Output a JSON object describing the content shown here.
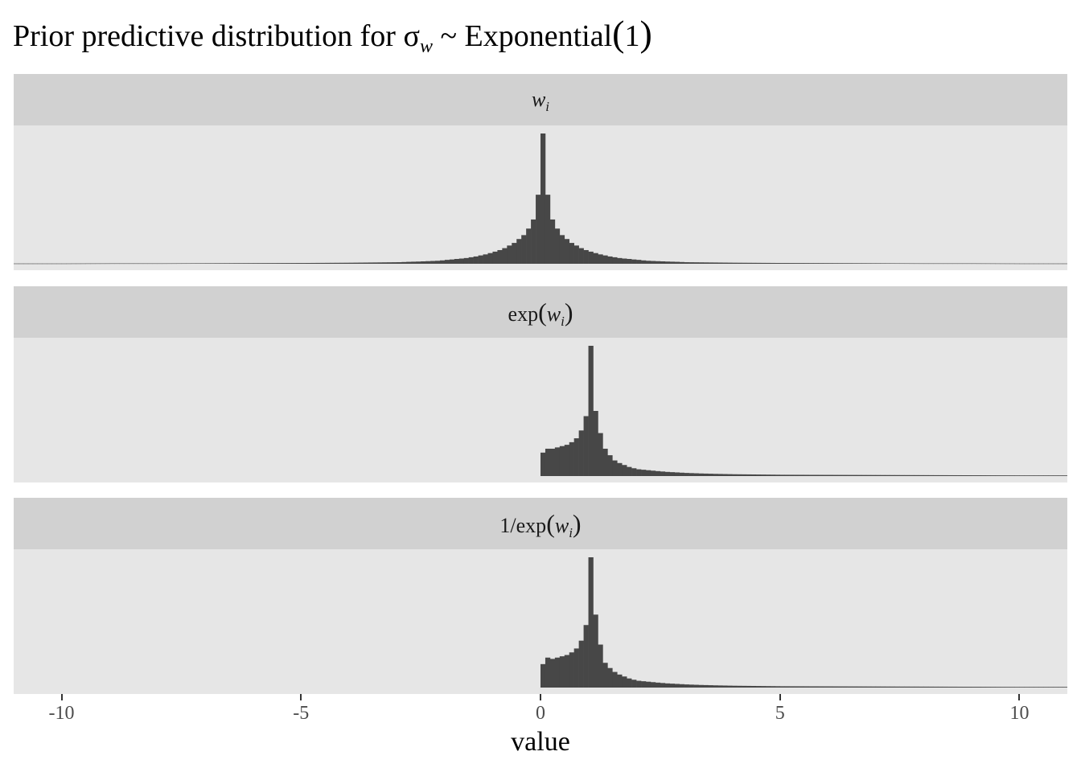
{
  "title": {
    "prefix": "Prior predictive distribution for σ",
    "sub": "w",
    "mid": " ~ Exponential",
    "arg": "1"
  },
  "panels": [
    {
      "label_html": "<i>w</i><sub>i</sub>"
    },
    {
      "label_html": "exp<span class=\"paren\">(</span><i>w</i><sub>i</sub><span class=\"paren\">)</span>"
    },
    {
      "label_html": "1/exp<span class=\"paren\">(</span><i>w</i><sub>i</sub><span class=\"paren\">)</span>"
    }
  ],
  "chart_data": {
    "type": "bar",
    "subtype": "histogram-faceted",
    "xlabel": "value",
    "ylabel": "",
    "xlim": [
      -11,
      11
    ],
    "x_ticks": [
      -10,
      -5,
      0,
      5,
      10
    ],
    "x_tick_labels": [
      "-10",
      "-5",
      "0",
      "5",
      "10"
    ],
    "y_axis_shown": false,
    "grid": false,
    "bin_width": 0.1,
    "bar_color": "#474747",
    "facets": [
      {
        "label": "w_i",
        "bins": [
          [
            -11.0,
            0.2
          ],
          [
            -10.0,
            0.2
          ],
          [
            -9.0,
            0.3
          ],
          [
            -8.0,
            0.3
          ],
          [
            -7.0,
            0.4
          ],
          [
            -6.0,
            0.5
          ],
          [
            -5.0,
            0.6
          ],
          [
            -4.0,
            0.8
          ],
          [
            -3.5,
            1.0
          ],
          [
            -3.0,
            1.2
          ],
          [
            -2.8,
            1.5
          ],
          [
            -2.6,
            1.7
          ],
          [
            -2.4,
            2.0
          ],
          [
            -2.2,
            2.3
          ],
          [
            -2.1,
            2.6
          ],
          [
            -2.0,
            3.0
          ],
          [
            -1.9,
            3.3
          ],
          [
            -1.8,
            3.7
          ],
          [
            -1.7,
            4.0
          ],
          [
            -1.6,
            4.4
          ],
          [
            -1.5,
            5.0
          ],
          [
            -1.4,
            5.6
          ],
          [
            -1.3,
            6.4
          ],
          [
            -1.2,
            7.2
          ],
          [
            -1.1,
            8.2
          ],
          [
            -1.0,
            9.3
          ],
          [
            -0.9,
            10.5
          ],
          [
            -0.8,
            12.0
          ],
          [
            -0.7,
            14.0
          ],
          [
            -0.6,
            16.0
          ],
          [
            -0.5,
            19.0
          ],
          [
            -0.4,
            22.0
          ],
          [
            -0.3,
            27.0
          ],
          [
            -0.2,
            34.0
          ],
          [
            -0.1,
            53.0
          ],
          [
            0.0,
            100.0
          ],
          [
            0.1,
            53.0
          ],
          [
            0.2,
            34.0
          ],
          [
            0.3,
            27.0
          ],
          [
            0.4,
            22.0
          ],
          [
            0.5,
            19.0
          ],
          [
            0.6,
            16.0
          ],
          [
            0.7,
            14.0
          ],
          [
            0.8,
            12.0
          ],
          [
            0.9,
            10.5
          ],
          [
            1.0,
            9.3
          ],
          [
            1.1,
            8.2
          ],
          [
            1.2,
            7.2
          ],
          [
            1.3,
            6.4
          ],
          [
            1.4,
            5.6
          ],
          [
            1.5,
            5.0
          ],
          [
            1.6,
            4.4
          ],
          [
            1.7,
            4.0
          ],
          [
            1.8,
            3.7
          ],
          [
            1.9,
            3.3
          ],
          [
            2.0,
            3.0
          ],
          [
            2.1,
            2.6
          ],
          [
            2.2,
            2.3
          ],
          [
            2.4,
            2.0
          ],
          [
            2.6,
            1.7
          ],
          [
            2.8,
            1.5
          ],
          [
            3.0,
            1.2
          ],
          [
            3.5,
            1.0
          ],
          [
            4.0,
            0.8
          ],
          [
            5.0,
            0.6
          ],
          [
            6.0,
            0.5
          ],
          [
            7.0,
            0.4
          ],
          [
            8.0,
            0.3
          ],
          [
            9.0,
            0.3
          ],
          [
            10.0,
            0.2
          ]
        ]
      },
      {
        "label": "exp(w_i)",
        "bins": [
          [
            0.0,
            18.0
          ],
          [
            0.1,
            21.0
          ],
          [
            0.2,
            21.0
          ],
          [
            0.3,
            22.0
          ],
          [
            0.4,
            23.0
          ],
          [
            0.5,
            24.0
          ],
          [
            0.6,
            26.0
          ],
          [
            0.7,
            29.0
          ],
          [
            0.8,
            35.0
          ],
          [
            0.9,
            46.0
          ],
          [
            1.0,
            100.0
          ],
          [
            1.1,
            50.0
          ],
          [
            1.2,
            33.0
          ],
          [
            1.3,
            21.0
          ],
          [
            1.4,
            16.0
          ],
          [
            1.5,
            12.0
          ],
          [
            1.6,
            10.0
          ],
          [
            1.7,
            8.5
          ],
          [
            1.8,
            7.0
          ],
          [
            1.9,
            6.0
          ],
          [
            2.0,
            5.2
          ],
          [
            2.2,
            4.5
          ],
          [
            2.4,
            3.8
          ],
          [
            2.6,
            3.2
          ],
          [
            2.8,
            2.8
          ],
          [
            3.0,
            2.4
          ],
          [
            3.3,
            2.0
          ],
          [
            3.6,
            1.7
          ],
          [
            4.0,
            1.4
          ],
          [
            4.5,
            1.2
          ],
          [
            5.0,
            1.0
          ],
          [
            6.0,
            0.9
          ],
          [
            7.0,
            0.8
          ],
          [
            8.0,
            0.7
          ],
          [
            9.0,
            0.6
          ],
          [
            10.0,
            0.5
          ]
        ]
      },
      {
        "label": "1/exp(w_i)",
        "bins": [
          [
            0.0,
            18.0
          ],
          [
            0.1,
            23.0
          ],
          [
            0.2,
            22.0
          ],
          [
            0.3,
            23.0
          ],
          [
            0.4,
            24.0
          ],
          [
            0.5,
            25.0
          ],
          [
            0.6,
            27.0
          ],
          [
            0.7,
            30.0
          ],
          [
            0.8,
            36.0
          ],
          [
            0.9,
            48.0
          ],
          [
            1.0,
            100.0
          ],
          [
            1.1,
            56.0
          ],
          [
            1.2,
            33.0
          ],
          [
            1.3,
            19.0
          ],
          [
            1.4,
            15.0
          ],
          [
            1.5,
            12.0
          ],
          [
            1.6,
            10.0
          ],
          [
            1.7,
            8.5
          ],
          [
            1.8,
            7.0
          ],
          [
            1.9,
            6.0
          ],
          [
            2.0,
            5.2
          ],
          [
            2.2,
            4.5
          ],
          [
            2.4,
            3.8
          ],
          [
            2.6,
            3.2
          ],
          [
            2.8,
            2.8
          ],
          [
            3.0,
            2.4
          ],
          [
            3.3,
            2.0
          ],
          [
            3.6,
            1.7
          ],
          [
            4.0,
            1.4
          ],
          [
            4.5,
            1.2
          ],
          [
            5.0,
            1.0
          ],
          [
            6.0,
            0.9
          ],
          [
            7.0,
            0.8
          ],
          [
            8.0,
            0.7
          ],
          [
            9.0,
            0.6
          ],
          [
            10.0,
            0.5
          ]
        ]
      }
    ]
  }
}
